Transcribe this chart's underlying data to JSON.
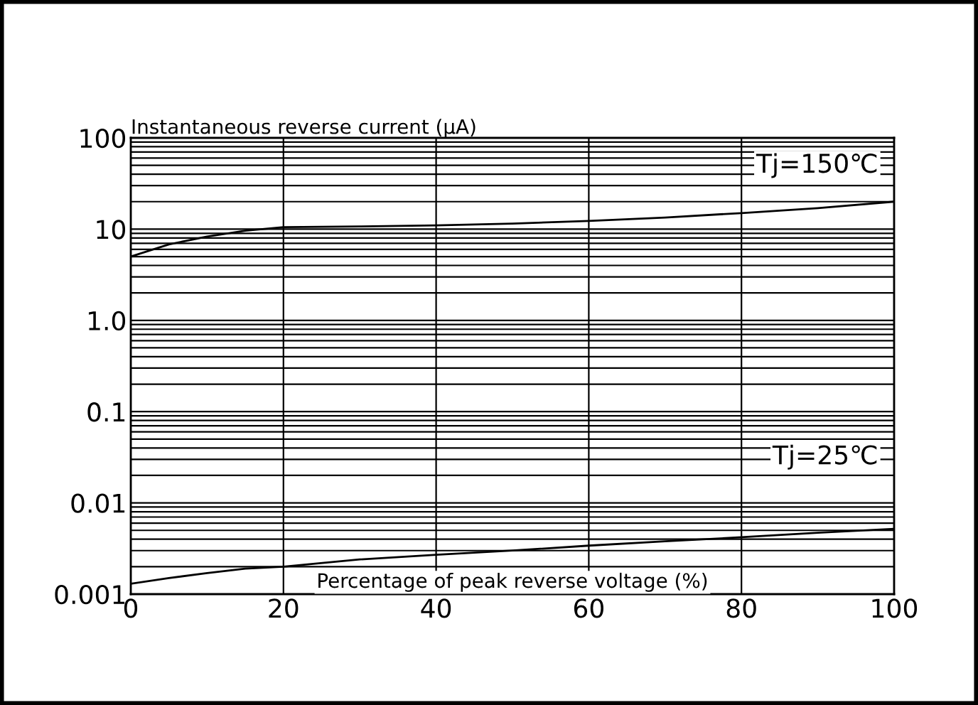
{
  "chart_data": {
    "type": "line",
    "ylabel": "Instantaneous reverse current (μA)",
    "xlabel": "Percentage of peak reverse voltage (%)",
    "x": [
      0,
      5,
      10,
      15,
      20,
      30,
      40,
      50,
      60,
      70,
      80,
      90,
      100
    ],
    "series": [
      {
        "name": "Tj=150℃",
        "color": "#000000",
        "values": [
          5,
          6.8,
          8.3,
          9.6,
          10.5,
          10.7,
          11,
          11.5,
          12.3,
          13.4,
          15,
          17,
          20
        ]
      },
      {
        "name": "Tj=25℃",
        "color": "#000000",
        "values": [
          0.0013,
          0.0015,
          0.0017,
          0.0019,
          0.002,
          0.0024,
          0.0027,
          0.003,
          0.0034,
          0.0038,
          0.0042,
          0.0047,
          0.0052
        ]
      }
    ],
    "log": "y",
    "xlim": [
      0,
      100
    ],
    "ylim": [
      0.001,
      100
    ],
    "xticks": [
      0,
      20,
      40,
      60,
      80,
      100
    ],
    "yticks": [
      {
        "value": 0.001,
        "label": "0.001"
      },
      {
        "value": 0.01,
        "label": "0.01"
      },
      {
        "value": 0.1,
        "label": "0.1"
      },
      {
        "value": 1,
        "label": "1.0"
      },
      {
        "value": 10,
        "label": "10"
      },
      {
        "value": 100,
        "label": "100"
      }
    ],
    "grid": true,
    "legend": false,
    "marker": "none",
    "line_style": "solid"
  }
}
